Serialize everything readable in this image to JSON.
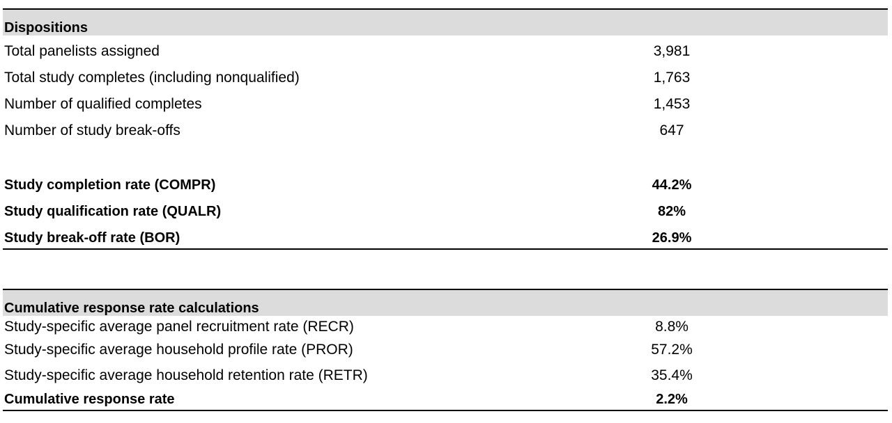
{
  "section1": {
    "header": "Dispositions",
    "rows": [
      {
        "label": "Total panelists assigned",
        "value": "3,981"
      },
      {
        "label": "Total study completes (including nonqualified)",
        "value": "1,763"
      },
      {
        "label": "Number of qualified completes",
        "value": "1,453"
      },
      {
        "label": "Number of study break-offs",
        "value": "647"
      }
    ],
    "bold_rows": [
      {
        "label": "Study completion rate (COMPR)",
        "value": "44.2%"
      },
      {
        "label": "Study qualification rate (QUALR)",
        "value": "82%"
      },
      {
        "label": "Study break-off rate (BOR)",
        "value": "26.9%"
      }
    ]
  },
  "section2": {
    "header": "Cumulative response rate calculations",
    "rows": [
      {
        "label": "Study-specific average panel recruitment rate (RECR)",
        "value": "8.8%"
      },
      {
        "label": "Study-specific average household profile rate (PROR)",
        "value": "57.2%"
      },
      {
        "label": "Study-specific average household retention rate (RETR)",
        "value": "35.4%"
      }
    ],
    "bold_rows": [
      {
        "label": "Cumulative response rate",
        "value": "2.2%"
      }
    ]
  }
}
